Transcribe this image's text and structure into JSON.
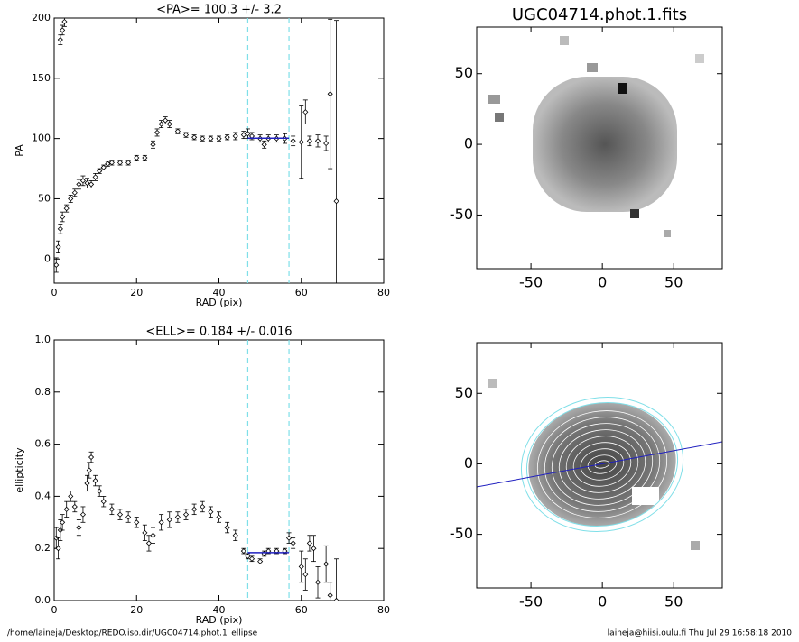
{
  "chart_data": [
    {
      "type": "errorbar",
      "title": "<PA>= 100.3 +/-   3.2",
      "xlabel": "RAD (pix)",
      "ylabel": "PA",
      "xlim": [
        0,
        80
      ],
      "ylim": [
        -20,
        200
      ],
      "xticks": [
        0,
        20,
        40,
        60,
        80
      ],
      "yticks": [
        0,
        50,
        100,
        150,
        200
      ],
      "color": "#000000",
      "x": [
        0.5,
        1,
        1.5,
        2,
        3,
        4,
        5,
        6,
        7,
        8,
        9,
        10,
        11,
        12,
        13,
        14,
        16,
        18,
        20,
        22,
        24,
        25,
        26,
        27,
        28,
        30,
        32,
        34,
        36,
        38,
        40,
        42,
        44,
        46,
        47,
        48,
        50,
        51,
        52,
        54,
        56,
        58,
        60,
        61,
        62,
        64,
        66,
        67,
        68.5,
        1.5,
        2,
        2.5
      ],
      "values": [
        -5,
        10,
        25,
        35,
        42,
        50,
        55,
        62,
        65,
        63,
        62,
        68,
        73,
        76,
        79,
        80,
        80,
        80,
        84,
        84,
        95,
        105,
        112,
        115,
        112,
        106,
        103,
        101,
        100,
        100,
        100,
        101,
        102,
        103,
        104,
        102,
        100,
        95,
        100,
        100,
        100,
        98,
        97,
        122,
        98,
        98,
        96,
        137,
        48,
        182,
        190,
        197
      ],
      "errors": [
        6,
        5,
        4,
        4,
        3,
        3,
        3,
        4,
        4,
        4,
        3,
        3,
        2,
        2,
        2,
        2,
        2,
        2,
        2,
        2,
        3,
        3,
        3,
        3,
        3,
        2,
        2,
        2,
        2,
        2,
        2,
        2,
        3,
        3,
        4,
        3,
        3,
        3,
        3,
        3,
        4,
        4,
        30,
        10,
        4,
        5,
        6,
        62,
        150,
        4,
        4,
        4
      ],
      "vlines": [
        47,
        57
      ],
      "vline_color": "#7fdfe8",
      "fit": {
        "value": 100.3,
        "xrange": [
          47,
          57
        ],
        "color": "#2020c0"
      }
    },
    {
      "type": "errorbar",
      "title": "<ELL>= 0.184 +/-  0.016",
      "xlabel": "RAD (pix)",
      "ylabel": "ellipticity",
      "xlim": [
        0,
        80
      ],
      "ylim": [
        0,
        1
      ],
      "xticks": [
        0,
        20,
        40,
        60,
        80
      ],
      "yticks": [
        {
          "value": 0,
          "label": "0.0"
        },
        0.2,
        0.4,
        0.6,
        0.8,
        {
          "value": 1,
          "label": "1.0"
        }
      ],
      "color": "#000000",
      "x": [
        0.5,
        1,
        1.5,
        2,
        3,
        4,
        5,
        6,
        7,
        8,
        8.5,
        9,
        10,
        11,
        12,
        14,
        16,
        18,
        20,
        22,
        23,
        24,
        26,
        28,
        30,
        32,
        34,
        36,
        38,
        40,
        42,
        44,
        46,
        47,
        48,
        50,
        51,
        52,
        54,
        56,
        57,
        58,
        60,
        61,
        62,
        63,
        64,
        66,
        67,
        68.5
      ],
      "values": [
        0.24,
        0.2,
        0.27,
        0.3,
        0.35,
        0.4,
        0.36,
        0.28,
        0.33,
        0.45,
        0.5,
        0.55,
        0.46,
        0.42,
        0.38,
        0.35,
        0.33,
        0.32,
        0.3,
        0.26,
        0.22,
        0.25,
        0.3,
        0.31,
        0.32,
        0.33,
        0.35,
        0.36,
        0.34,
        0.32,
        0.28,
        0.25,
        0.19,
        0.17,
        0.16,
        0.15,
        0.18,
        0.19,
        0.19,
        0.19,
        0.24,
        0.22,
        0.13,
        0.1,
        0.22,
        0.2,
        0.07,
        0.14,
        0.02,
        0.0
      ],
      "errors": [
        0.04,
        0.04,
        0.04,
        0.03,
        0.03,
        0.02,
        0.02,
        0.03,
        0.03,
        0.03,
        0.03,
        0.02,
        0.02,
        0.02,
        0.02,
        0.02,
        0.02,
        0.02,
        0.02,
        0.03,
        0.03,
        0.03,
        0.03,
        0.03,
        0.02,
        0.02,
        0.02,
        0.02,
        0.02,
        0.02,
        0.02,
        0.02,
        0.01,
        0.01,
        0.01,
        0.01,
        0.01,
        0.01,
        0.01,
        0.01,
        0.02,
        0.02,
        0.06,
        0.06,
        0.03,
        0.05,
        0.06,
        0.07,
        0.05,
        0.16
      ],
      "vlines": [
        47,
        57
      ],
      "vline_color": "#7fdfe8",
      "fit": {
        "value": 0.184,
        "xrange": [
          47,
          57
        ],
        "color": "#2020c0"
      }
    },
    {
      "type": "image",
      "title": "UGC04714.phot.1.fits",
      "xlim": [
        -88,
        84
      ],
      "ylim": [
        -88,
        83
      ],
      "xticks": [
        -50,
        0,
        50
      ],
      "yticks": [
        -50,
        0,
        50
      ]
    },
    {
      "type": "image",
      "xlim": [
        -88,
        84
      ],
      "ylim": [
        -88,
        86
      ],
      "xticks": [
        -50,
        0,
        50
      ],
      "yticks": [
        -50,
        0,
        50
      ]
    }
  ],
  "footer_left": "/home/laineja/Desktop/REDO.iso.dir/UGC04714.phot.1_ellipse",
  "footer_right": "laineja@hiisi.oulu.fi  Thu Jul 29 16:58:18 2010"
}
